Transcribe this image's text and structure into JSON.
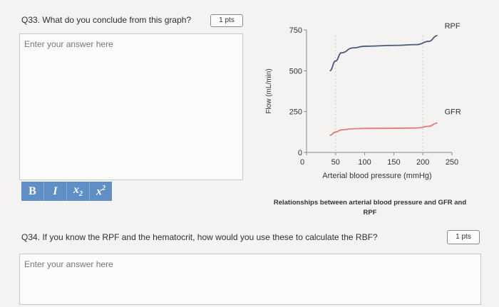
{
  "q33": {
    "question": "Q33. What do you conclude from this graph?",
    "points": "1 pts",
    "placeholder": "Enter your answer here"
  },
  "toolbar": {
    "bold": "B",
    "italic": "I",
    "subscript_base": "x",
    "subscript": "2",
    "superscript_base": "x",
    "superscript": "2"
  },
  "q34": {
    "question": "Q34. If you know the RPF and the hematocrit, how would you use these to calculate the RBF?",
    "points": "1 pts",
    "placeholder": "Enter your answer here"
  },
  "figure": {
    "caption_line1": "Relationships between arterial blood pressure and GFR and",
    "caption_line2": "RPF"
  },
  "chart_data": {
    "type": "line",
    "xlabel": "Arterial blood pressure (mmHg)",
    "ylabel": "Flow (mL/min)",
    "xlim": [
      0,
      250
    ],
    "ylim": [
      0,
      750
    ],
    "x_ticks": [
      "0",
      "50",
      "100",
      "150",
      "200",
      "250"
    ],
    "y_ticks": [
      "0",
      "250",
      "500",
      "750"
    ],
    "grid_lines_x": [
      50,
      200
    ],
    "series": [
      {
        "name": "RPF",
        "color": "#4a5a7a",
        "x": [
          40,
          50,
          60,
          80,
          100,
          150,
          190,
          210,
          225
        ],
        "y": [
          500,
          560,
          610,
          640,
          650,
          655,
          660,
          680,
          715
        ]
      },
      {
        "name": "GFR",
        "color": "#e87878",
        "x": [
          40,
          50,
          60,
          80,
          100,
          150,
          190,
          210,
          225
        ],
        "y": [
          105,
          125,
          138,
          145,
          147,
          148,
          150,
          160,
          180
        ]
      }
    ]
  }
}
